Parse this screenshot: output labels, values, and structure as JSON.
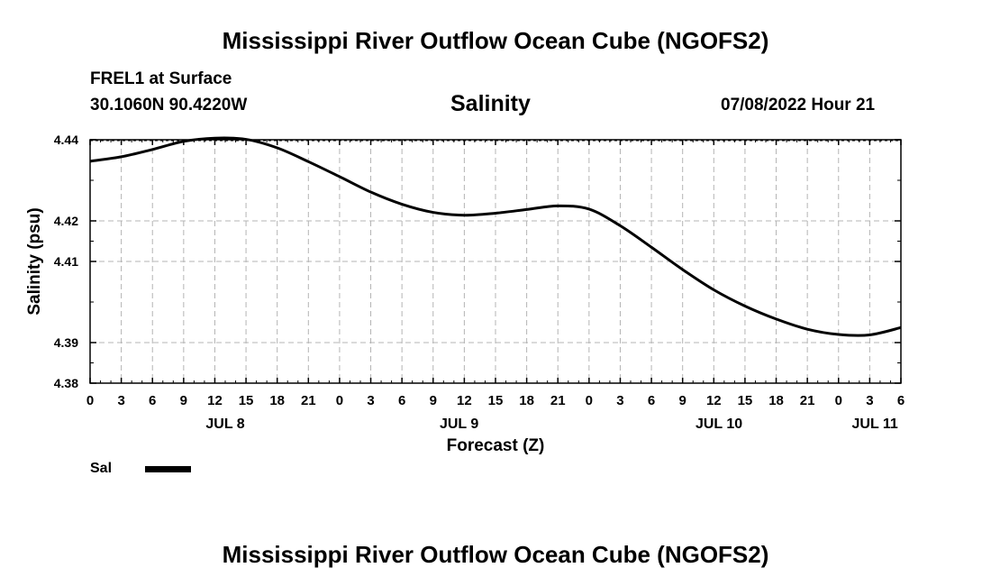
{
  "page": {
    "title_top": "Mississippi River Outflow Ocean Cube (NGOFS2)",
    "title_bottom": "Mississippi River Outflow Ocean Cube (NGOFS2)",
    "station_line": "FREL1 at Surface",
    "coords_line": "30.1060N  90.4220W",
    "datetime_line": "07/08/2022 Hour 21"
  },
  "legend": {
    "label": "Sal",
    "color": "#000000"
  },
  "chart_data": {
    "type": "line",
    "title": "Salinity",
    "xlabel": "Forecast (Z)",
    "ylabel": "Salinity (psu)",
    "ylim": [
      4.38,
      4.44
    ],
    "yticks": [
      4.38,
      4.39,
      4.41,
      4.42,
      4.44
    ],
    "ytick_labels": [
      "4.38",
      "4.39",
      "4.41",
      "4.42",
      "4.44"
    ],
    "xlim": [
      0,
      78
    ],
    "x_unit": "hours from 00Z JUL 8",
    "xticks": [
      0,
      3,
      6,
      9,
      12,
      15,
      18,
      21,
      24,
      27,
      30,
      33,
      36,
      39,
      42,
      45,
      48,
      51,
      54,
      57,
      60,
      63,
      66,
      69,
      72,
      75,
      78
    ],
    "xtick_labels": [
      "0",
      "3",
      "6",
      "9",
      "12",
      "15",
      "18",
      "21",
      "0",
      "3",
      "6",
      "9",
      "12",
      "15",
      "18",
      "21",
      "0",
      "3",
      "6",
      "9",
      "12",
      "15",
      "18",
      "21",
      "0",
      "3",
      "6"
    ],
    "day_labels": [
      {
        "label": "JUL 8",
        "x": 13
      },
      {
        "label": "JUL 9",
        "x": 35.5
      },
      {
        "label": "JUL 10",
        "x": 60.5
      },
      {
        "label": "JUL 11",
        "x": 75.5
      }
    ],
    "grid": true,
    "series": [
      {
        "name": "Sal",
        "x": [
          0,
          3,
          6,
          9,
          12,
          15,
          18,
          21,
          24,
          27,
          30,
          33,
          36,
          39,
          42,
          45,
          48,
          51,
          54,
          57,
          60,
          63,
          66,
          69,
          72,
          75,
          78
        ],
        "values": [
          4.4347,
          4.4358,
          4.4376,
          4.4396,
          4.4404,
          4.4401,
          4.438,
          4.4346,
          4.4309,
          4.4271,
          4.4241,
          4.4221,
          4.4214,
          4.4219,
          4.4228,
          4.4237,
          4.4229,
          4.4188,
          4.4135,
          4.408,
          4.403,
          4.399,
          4.3958,
          4.3933,
          4.392,
          4.3919,
          4.3937
        ]
      }
    ]
  }
}
